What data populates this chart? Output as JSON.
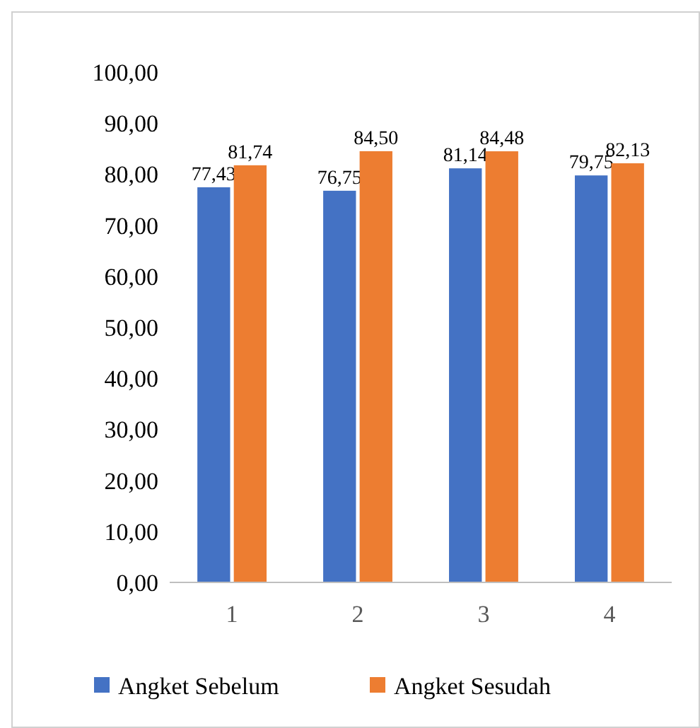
{
  "chart_data": {
    "type": "bar",
    "categories": [
      "1",
      "2",
      "3",
      "4"
    ],
    "series": [
      {
        "name": "Angket Sebelum",
        "color": "#4472c4",
        "values": [
          77.43,
          76.75,
          81.14,
          79.75
        ],
        "value_labels": [
          "77,43",
          "76,75",
          "81,14",
          "79,75"
        ]
      },
      {
        "name": "Angket Sesudah",
        "color": "#ed7d31",
        "values": [
          81.74,
          84.5,
          84.48,
          82.13
        ],
        "value_labels": [
          "81,74",
          "84,50",
          "84,48",
          "82,13"
        ]
      }
    ],
    "ylim": [
      0,
      100
    ],
    "yticks": [
      {
        "value": 0,
        "label": "0,00"
      },
      {
        "value": 10,
        "label": "10,00"
      },
      {
        "value": 20,
        "label": "20,00"
      },
      {
        "value": 30,
        "label": "30,00"
      },
      {
        "value": 40,
        "label": "40,00"
      },
      {
        "value": 50,
        "label": "50,00"
      },
      {
        "value": 60,
        "label": "60,00"
      },
      {
        "value": 70,
        "label": "70,00"
      },
      {
        "value": 80,
        "label": "80,00"
      },
      {
        "value": 90,
        "label": "90,00"
      },
      {
        "value": 100,
        "label": "100,00"
      }
    ],
    "grid": false,
    "legend": "bottom"
  }
}
